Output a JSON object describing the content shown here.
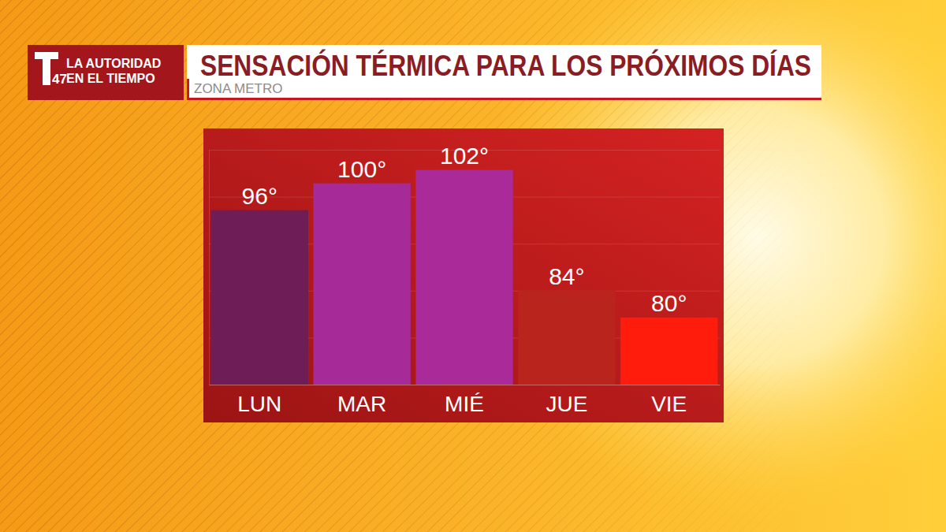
{
  "chart_data": {
    "type": "bar",
    "title": "SENSACIÓN TÉRMICA PARA LOS PRÓXIMOS DÍAS",
    "subtitle": "ZONA METRO",
    "annotations": [
      "LA AUTORIDAD",
      "EN EL TIEMPO",
      "47"
    ],
    "categories": [
      "LUN",
      "MAR",
      "MIÉ",
      "JUE",
      "VIE"
    ],
    "values": [
      96,
      100,
      102,
      84,
      80
    ],
    "value_labels": [
      "96°",
      "100°",
      "102°",
      "84°",
      "80°"
    ],
    "colors": [
      "#6e1d56",
      "#a62a98",
      "#aa2a9a",
      "#b9241c",
      "#ff1c0c"
    ],
    "ylim": [
      70,
      105
    ],
    "yticks": [
      70,
      77,
      84,
      91,
      98,
      105
    ],
    "grid": true,
    "data_labels": true,
    "tick_labels": "x"
  }
}
